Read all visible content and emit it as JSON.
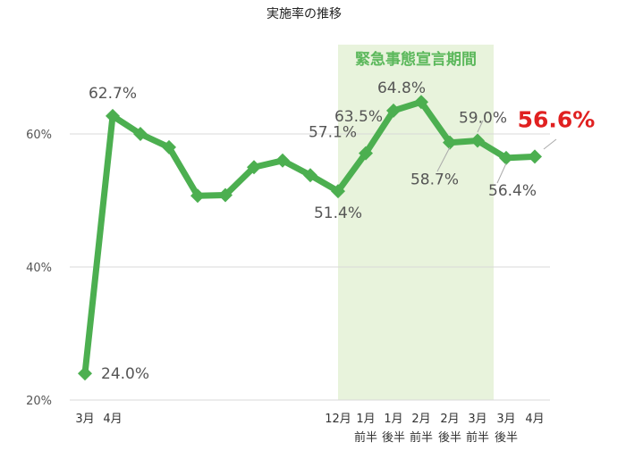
{
  "chart_data": {
    "type": "line",
    "title": "実施率の推移",
    "band_label": "緊急事態宣言期間",
    "ylim": [
      20,
      70
    ],
    "yticks": [
      "20%",
      "40%",
      "60%"
    ],
    "grid": true,
    "series": [
      {
        "values": [
          24.0,
          62.7,
          60.0,
          58.0,
          50.7,
          50.8,
          55.0,
          56.0,
          53.8,
          51.4,
          57.1,
          63.5,
          64.8,
          58.7,
          59.0,
          56.4,
          56.6
        ]
      }
    ],
    "x_labels": [
      [
        "3月",
        ""
      ],
      [
        "4月",
        ""
      ],
      [
        "",
        ""
      ],
      [
        "",
        ""
      ],
      [
        "",
        ""
      ],
      [
        "",
        ""
      ],
      [
        "",
        ""
      ],
      [
        "",
        ""
      ],
      [
        "",
        ""
      ],
      [
        "12月",
        ""
      ],
      [
        "1月",
        "前半"
      ],
      [
        "1月",
        "後半"
      ],
      [
        "2月",
        "前半"
      ],
      [
        "2月",
        "後半"
      ],
      [
        "3月",
        "前半"
      ],
      [
        "3月",
        "後半"
      ],
      [
        "4月",
        ""
      ]
    ],
    "data_labels": [
      {
        "i": 0,
        "text": "24.0%"
      },
      {
        "i": 1,
        "text": "62.7%"
      },
      {
        "i": 9,
        "text": "51.4%"
      },
      {
        "i": 10,
        "text": "57.1%"
      },
      {
        "i": 11,
        "text": "63.5%"
      },
      {
        "i": 12,
        "text": "64.8%"
      },
      {
        "i": 13,
        "text": "58.7%"
      },
      {
        "i": 14,
        "text": "59.0%"
      },
      {
        "i": 15,
        "text": "56.4%"
      },
      {
        "i": 16,
        "text": "56.6%"
      }
    ],
    "band_range": [
      10,
      14
    ],
    "colors": {
      "line": "#4caf50",
      "band": "#e8f3dc",
      "highlight": "#e02020"
    }
  }
}
